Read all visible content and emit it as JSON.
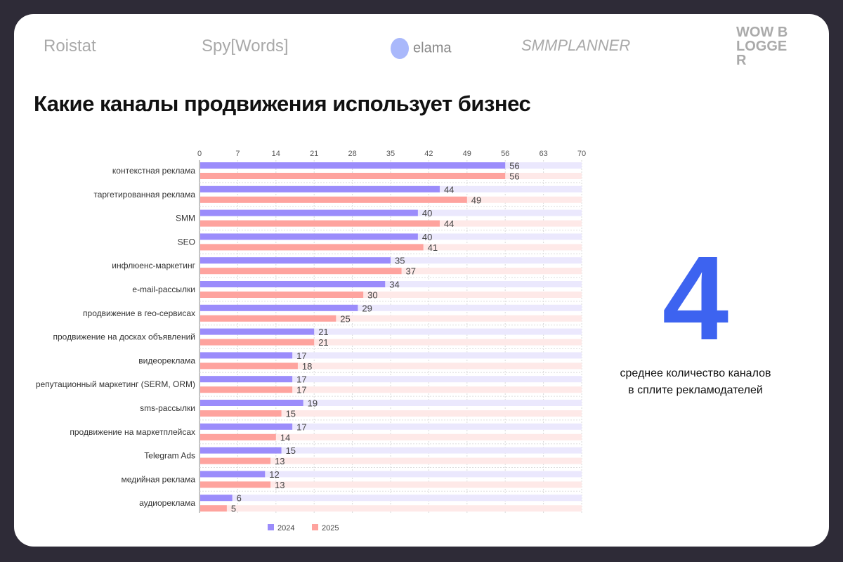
{
  "logos": [
    "Roistat",
    "Spy[Words]",
    "elama",
    "SMMPLANNER",
    "WOW BLOGGER"
  ],
  "title": "Какие каналы продвижения использует бизнес",
  "stat": {
    "value": "4",
    "caption_line1": "среднее количество каналов",
    "caption_line2": "в сплите рекламодателей"
  },
  "colors": {
    "s2024": "#9b8cfb",
    "s2025": "#fea39e",
    "track2024": "#ebe8fd",
    "track2025": "#fee9e8",
    "accent": "#3d63f0"
  },
  "chart_data": {
    "type": "bar",
    "orientation": "horizontal",
    "categories": [
      "контекстная реклама",
      "таргетированная реклама",
      "SMM",
      "SEO",
      "инфлюенс-маркетинг",
      "e-mail-рассылки",
      "продвижение в гео-сервисах",
      "продвижение на досках объявлений",
      "видеореклама",
      "репутационный маркетинг (SERM, ORM)",
      "sms-рассылки",
      "продвижение на маркетплейсах",
      "Telegram Ads",
      "медийная реклама",
      "аудиореклама"
    ],
    "series": [
      {
        "name": "2024",
        "values": [
          56,
          44,
          40,
          40,
          35,
          34,
          29,
          21,
          17,
          17,
          19,
          17,
          15,
          12,
          6
        ]
      },
      {
        "name": "2025",
        "values": [
          56,
          49,
          44,
          41,
          37,
          30,
          25,
          21,
          18,
          17,
          15,
          14,
          13,
          13,
          5
        ]
      }
    ],
    "xlim": [
      0,
      70
    ],
    "xticks": [
      0,
      7,
      14,
      21,
      28,
      35,
      42,
      49,
      56,
      63,
      70
    ],
    "axis_position": "top",
    "grid": true,
    "legend": "bottom"
  }
}
